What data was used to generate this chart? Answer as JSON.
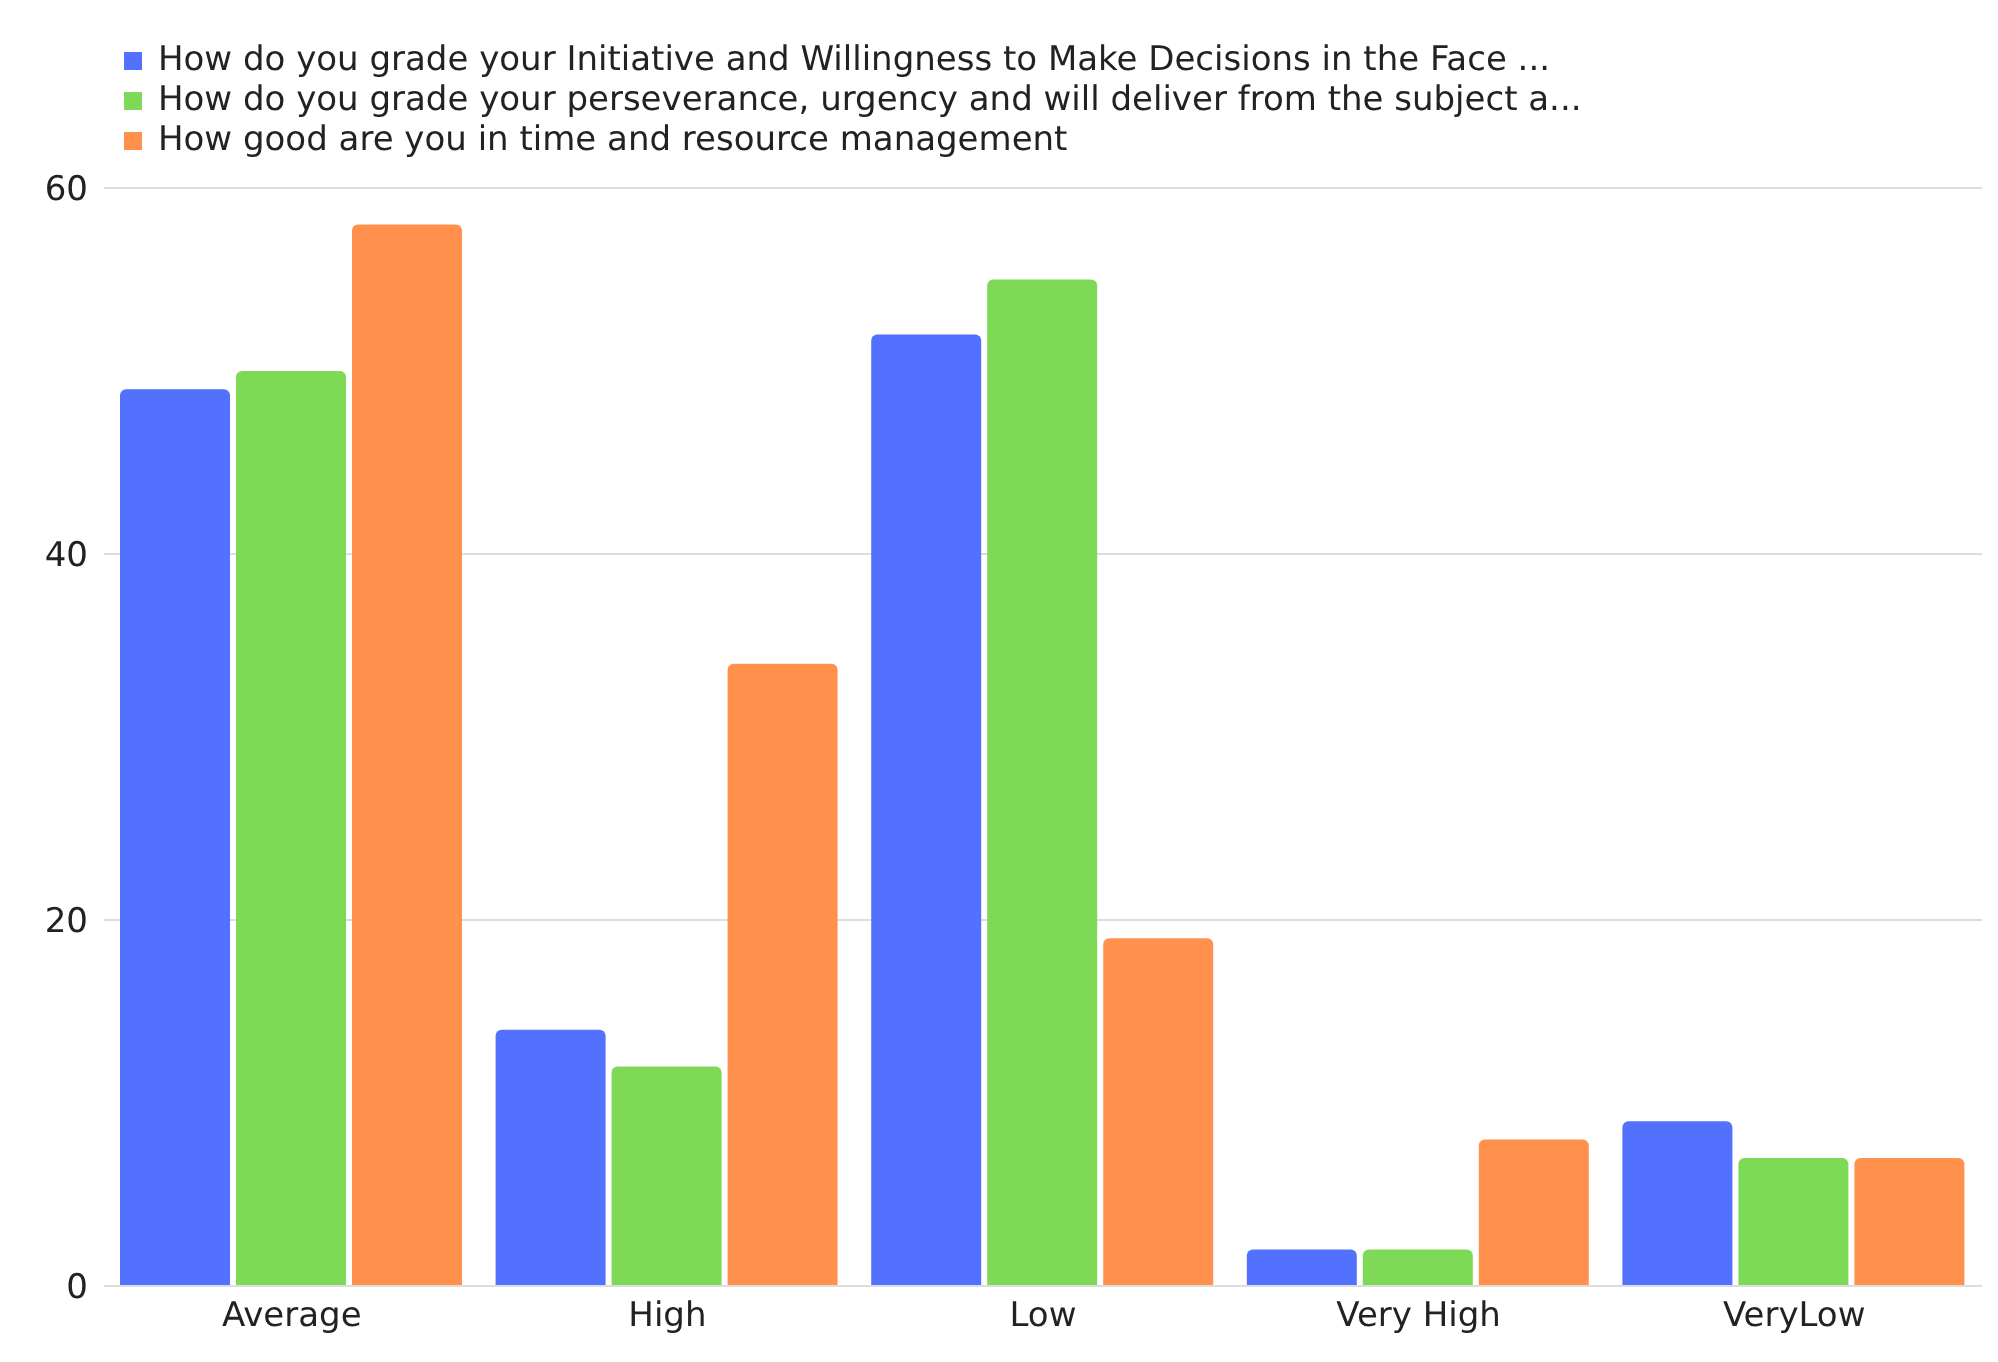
{
  "chart_data": {
    "type": "bar",
    "categories": [
      "Average",
      "High",
      "Low",
      "Very High",
      "VeryLow"
    ],
    "series": [
      {
        "name": "How do you grade your Initiative and Willingness to Make Decisions in the Face ...",
        "color": "#5271ff",
        "values": [
          49,
          14,
          52,
          2,
          9
        ]
      },
      {
        "name": "How do you grade your perseverance, urgency and will deliver from the subject a...",
        "color": "#7ed957",
        "values": [
          50,
          12,
          55,
          2,
          7
        ]
      },
      {
        "name": "How good are you in time and resource management",
        "color": "#ff914d",
        "values": [
          58,
          34,
          19,
          8,
          7
        ]
      }
    ],
    "ylim": [
      0,
      60
    ],
    "yticks": [
      0,
      20,
      40,
      60
    ],
    "grid": "y",
    "legend": "top left"
  }
}
